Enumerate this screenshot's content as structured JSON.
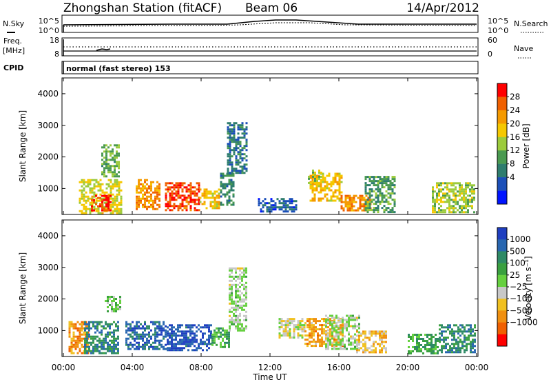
{
  "header": {
    "station": "Zhongshan Station (fitACF)",
    "beam": "Beam 06",
    "date": "14/Apr/2012"
  },
  "top_panels": {
    "nsky_label": "N.Sky",
    "nsearch_label": "N.Search",
    "noise_ticks": [
      "10^5",
      "10^0"
    ],
    "freq_label_line1": "Freq.",
    "freq_label_line2": "[MHz]",
    "freq_ticks": [
      "18",
      "8"
    ],
    "nave_label": "Nave",
    "nave_ticks": [
      "60",
      "0"
    ],
    "cpid_label": "CPID",
    "cpid_text": "normal (fast stereo) 153"
  },
  "axes": {
    "range_label": "Slant Range [km]",
    "y_ticks": [
      "4000",
      "3000",
      "2000",
      "1000"
    ],
    "x_ticks": [
      "00:00",
      "04:00",
      "08:00",
      "12:00",
      "16:00",
      "20:00",
      "00:00"
    ],
    "x_label": "Time UT"
  },
  "power_scale": {
    "label": "Power [dB]",
    "ticks": [
      "28",
      "24",
      "20",
      "16",
      "12",
      "8",
      "4"
    ],
    "colors": [
      "#0014ff",
      "#1b4fb8",
      "#2e7d6e",
      "#4a9a50",
      "#9ccb3c",
      "#f5c800",
      "#f59a00",
      "#f06000",
      "#ff0000"
    ]
  },
  "velocity_scale": {
    "label": "Velocity [m s⁻¹]",
    "ticks": [
      "1000",
      "500",
      "100",
      "25",
      "−25",
      "−100",
      "−500",
      "−1000"
    ],
    "colors": [
      "#1f3fc0",
      "#2866b0",
      "#2e8a66",
      "#3aa040",
      "#66d040",
      "#c8c8c8",
      "#f0c020",
      "#f09010",
      "#f06000",
      "#ff0000"
    ]
  },
  "chart_data": {
    "type": "heatmap",
    "x_range": [
      "00:00",
      "00:00"
    ],
    "y_range_km": [
      180,
      4500
    ],
    "panels": [
      {
        "name": "power",
        "unit": "dB",
        "scale_range": [
          0,
          32
        ],
        "patches": [
          {
            "t": [
              0.9,
              3.4
            ],
            "r": [
              250,
              1300
            ],
            "v": 18
          },
          {
            "t": [
              1.6,
              2.8
            ],
            "r": [
              300,
              800
            ],
            "v": 28
          },
          {
            "t": [
              4.2,
              5.6
            ],
            "r": [
              350,
              1300
            ],
            "v": 24
          },
          {
            "t": [
              5.9,
              7.9
            ],
            "r": [
              300,
              1200
            ],
            "v": 28
          },
          {
            "t": [
              7.9,
              9.0
            ],
            "r": [
              400,
              1000
            ],
            "v": 20
          },
          {
            "t": [
              9.1,
              9.9
            ],
            "r": [
              500,
              1500
            ],
            "v": 10
          },
          {
            "t": [
              2.2,
              3.2
            ],
            "r": [
              1400,
              2400
            ],
            "v": 14
          },
          {
            "t": [
              9.5,
              10.6
            ],
            "r": [
              1500,
              3100
            ],
            "v": 8
          },
          {
            "t": [
              14.3,
              16.1
            ],
            "r": [
              600,
              1500
            ],
            "v": 20
          },
          {
            "t": [
              14.2,
              15.0
            ],
            "r": [
              1200,
              1600
            ],
            "v": 16
          },
          {
            "t": [
              16.1,
              17.8
            ],
            "r": [
              300,
              800
            ],
            "v": 24
          },
          {
            "t": [
              17.5,
              19.3
            ],
            "r": [
              250,
              1400
            ],
            "v": 12
          },
          {
            "t": [
              21.4,
              23.9
            ],
            "r": [
              250,
              1200
            ],
            "v": 16
          },
          {
            "t": [
              11.3,
              13.5
            ],
            "r": [
              300,
              700
            ],
            "v": 6
          }
        ]
      },
      {
        "name": "velocity",
        "unit": "m s^-1",
        "scale_range": [
          -1000,
          1000
        ],
        "patches": [
          {
            "t": [
              0.3,
              1.5
            ],
            "r": [
              300,
              1300
            ],
            "v": -500
          },
          {
            "t": [
              1.2,
              3.2
            ],
            "r": [
              300,
              1300
            ],
            "v": 500
          },
          {
            "t": [
              2.4,
              3.3
            ],
            "r": [
              1600,
              2100
            ],
            "v": 100
          },
          {
            "t": [
              3.6,
              6.0
            ],
            "r": [
              400,
              1300
            ],
            "v": 700
          },
          {
            "t": [
              6.0,
              8.6
            ],
            "r": [
              400,
              1200
            ],
            "v": 800
          },
          {
            "t": [
              8.6,
              9.6
            ],
            "r": [
              500,
              1100
            ],
            "v": 300
          },
          {
            "t": [
              9.6,
              10.6
            ],
            "r": [
              1000,
              3000
            ],
            "v": 0
          },
          {
            "t": [
              12.5,
              14.0
            ],
            "r": [
              800,
              1400
            ],
            "v": -100
          },
          {
            "t": [
              14.0,
              16.2
            ],
            "r": [
              500,
              1400
            ],
            "v": -400
          },
          {
            "t": [
              15.2,
              17.2
            ],
            "r": [
              400,
              1500
            ],
            "v": 0
          },
          {
            "t": [
              17.0,
              18.8
            ],
            "r": [
              300,
              1000
            ],
            "v": -300
          },
          {
            "t": [
              20.0,
              21.8
            ],
            "r": [
              300,
              900
            ],
            "v": 300
          },
          {
            "t": [
              21.8,
              23.9
            ],
            "r": [
              300,
              1200
            ],
            "v": 500
          }
        ]
      }
    ]
  }
}
